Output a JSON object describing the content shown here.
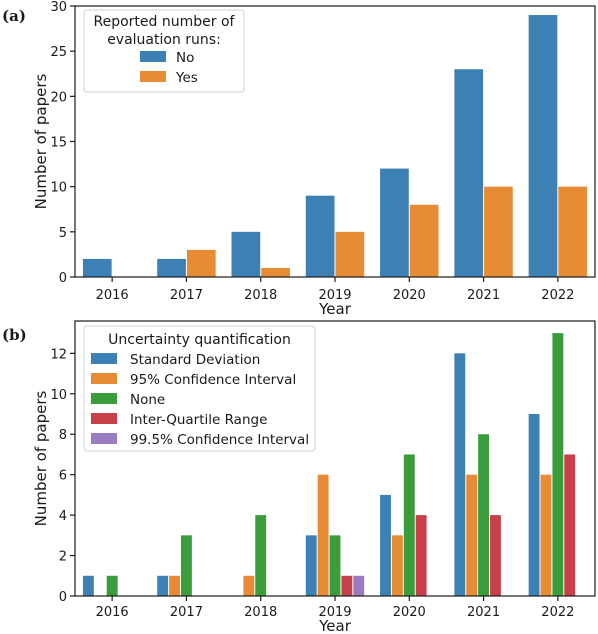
{
  "colors": {
    "blue": "#3d80b4",
    "orange": "#e88b35",
    "green": "#3b9c3b",
    "red": "#c8404a",
    "purple": "#9a7cc0"
  },
  "chart_data": [
    {
      "panel": "(a)",
      "type": "bar",
      "categories": [
        "2016",
        "2017",
        "2018",
        "2019",
        "2020",
        "2021",
        "2022"
      ],
      "xlabel": "Year",
      "ylabel": "Number of papers",
      "ylim": [
        0,
        30
      ],
      "yticks": [
        0,
        5,
        10,
        15,
        20,
        25,
        30
      ],
      "grid": false,
      "legend": {
        "title_lines": [
          "Reported number of",
          "evaluation runs:"
        ],
        "placement": "top-left"
      },
      "series": [
        {
          "name": "No",
          "color": "#3d80b4",
          "values": [
            2,
            2,
            5,
            9,
            12,
            23,
            29
          ]
        },
        {
          "name": "Yes",
          "color": "#e88b35",
          "values": [
            0,
            3,
            1,
            5,
            8,
            10,
            10
          ]
        }
      ]
    },
    {
      "panel": "(b)",
      "type": "bar",
      "categories": [
        "2016",
        "2017",
        "2018",
        "2019",
        "2020",
        "2021",
        "2022"
      ],
      "xlabel": "Year",
      "ylabel": "Number of papers",
      "ylim": [
        0,
        13.6
      ],
      "yticks": [
        0,
        2,
        4,
        6,
        8,
        10,
        12
      ],
      "grid": false,
      "legend": {
        "title_lines": [
          "Uncertainty quantification"
        ],
        "placement": "top-left"
      },
      "series": [
        {
          "name": "Standard Deviation",
          "color": "#3d80b4",
          "values": [
            1,
            1,
            0,
            3,
            5,
            12,
            9
          ]
        },
        {
          "name": "95% Confidence Interval",
          "color": "#e88b35",
          "values": [
            0,
            1,
            1,
            6,
            3,
            6,
            6
          ]
        },
        {
          "name": "None",
          "color": "#3b9c3b",
          "values": [
            1,
            3,
            4,
            3,
            7,
            8,
            13
          ]
        },
        {
          "name": "Inter-Quartile Range",
          "color": "#c8404a",
          "values": [
            0,
            0,
            0,
            1,
            4,
            4,
            7
          ]
        },
        {
          "name": "99.5% Confidence Interval",
          "color": "#9a7cc0",
          "values": [
            0,
            0,
            0,
            1,
            0,
            0,
            0
          ]
        }
      ]
    }
  ]
}
